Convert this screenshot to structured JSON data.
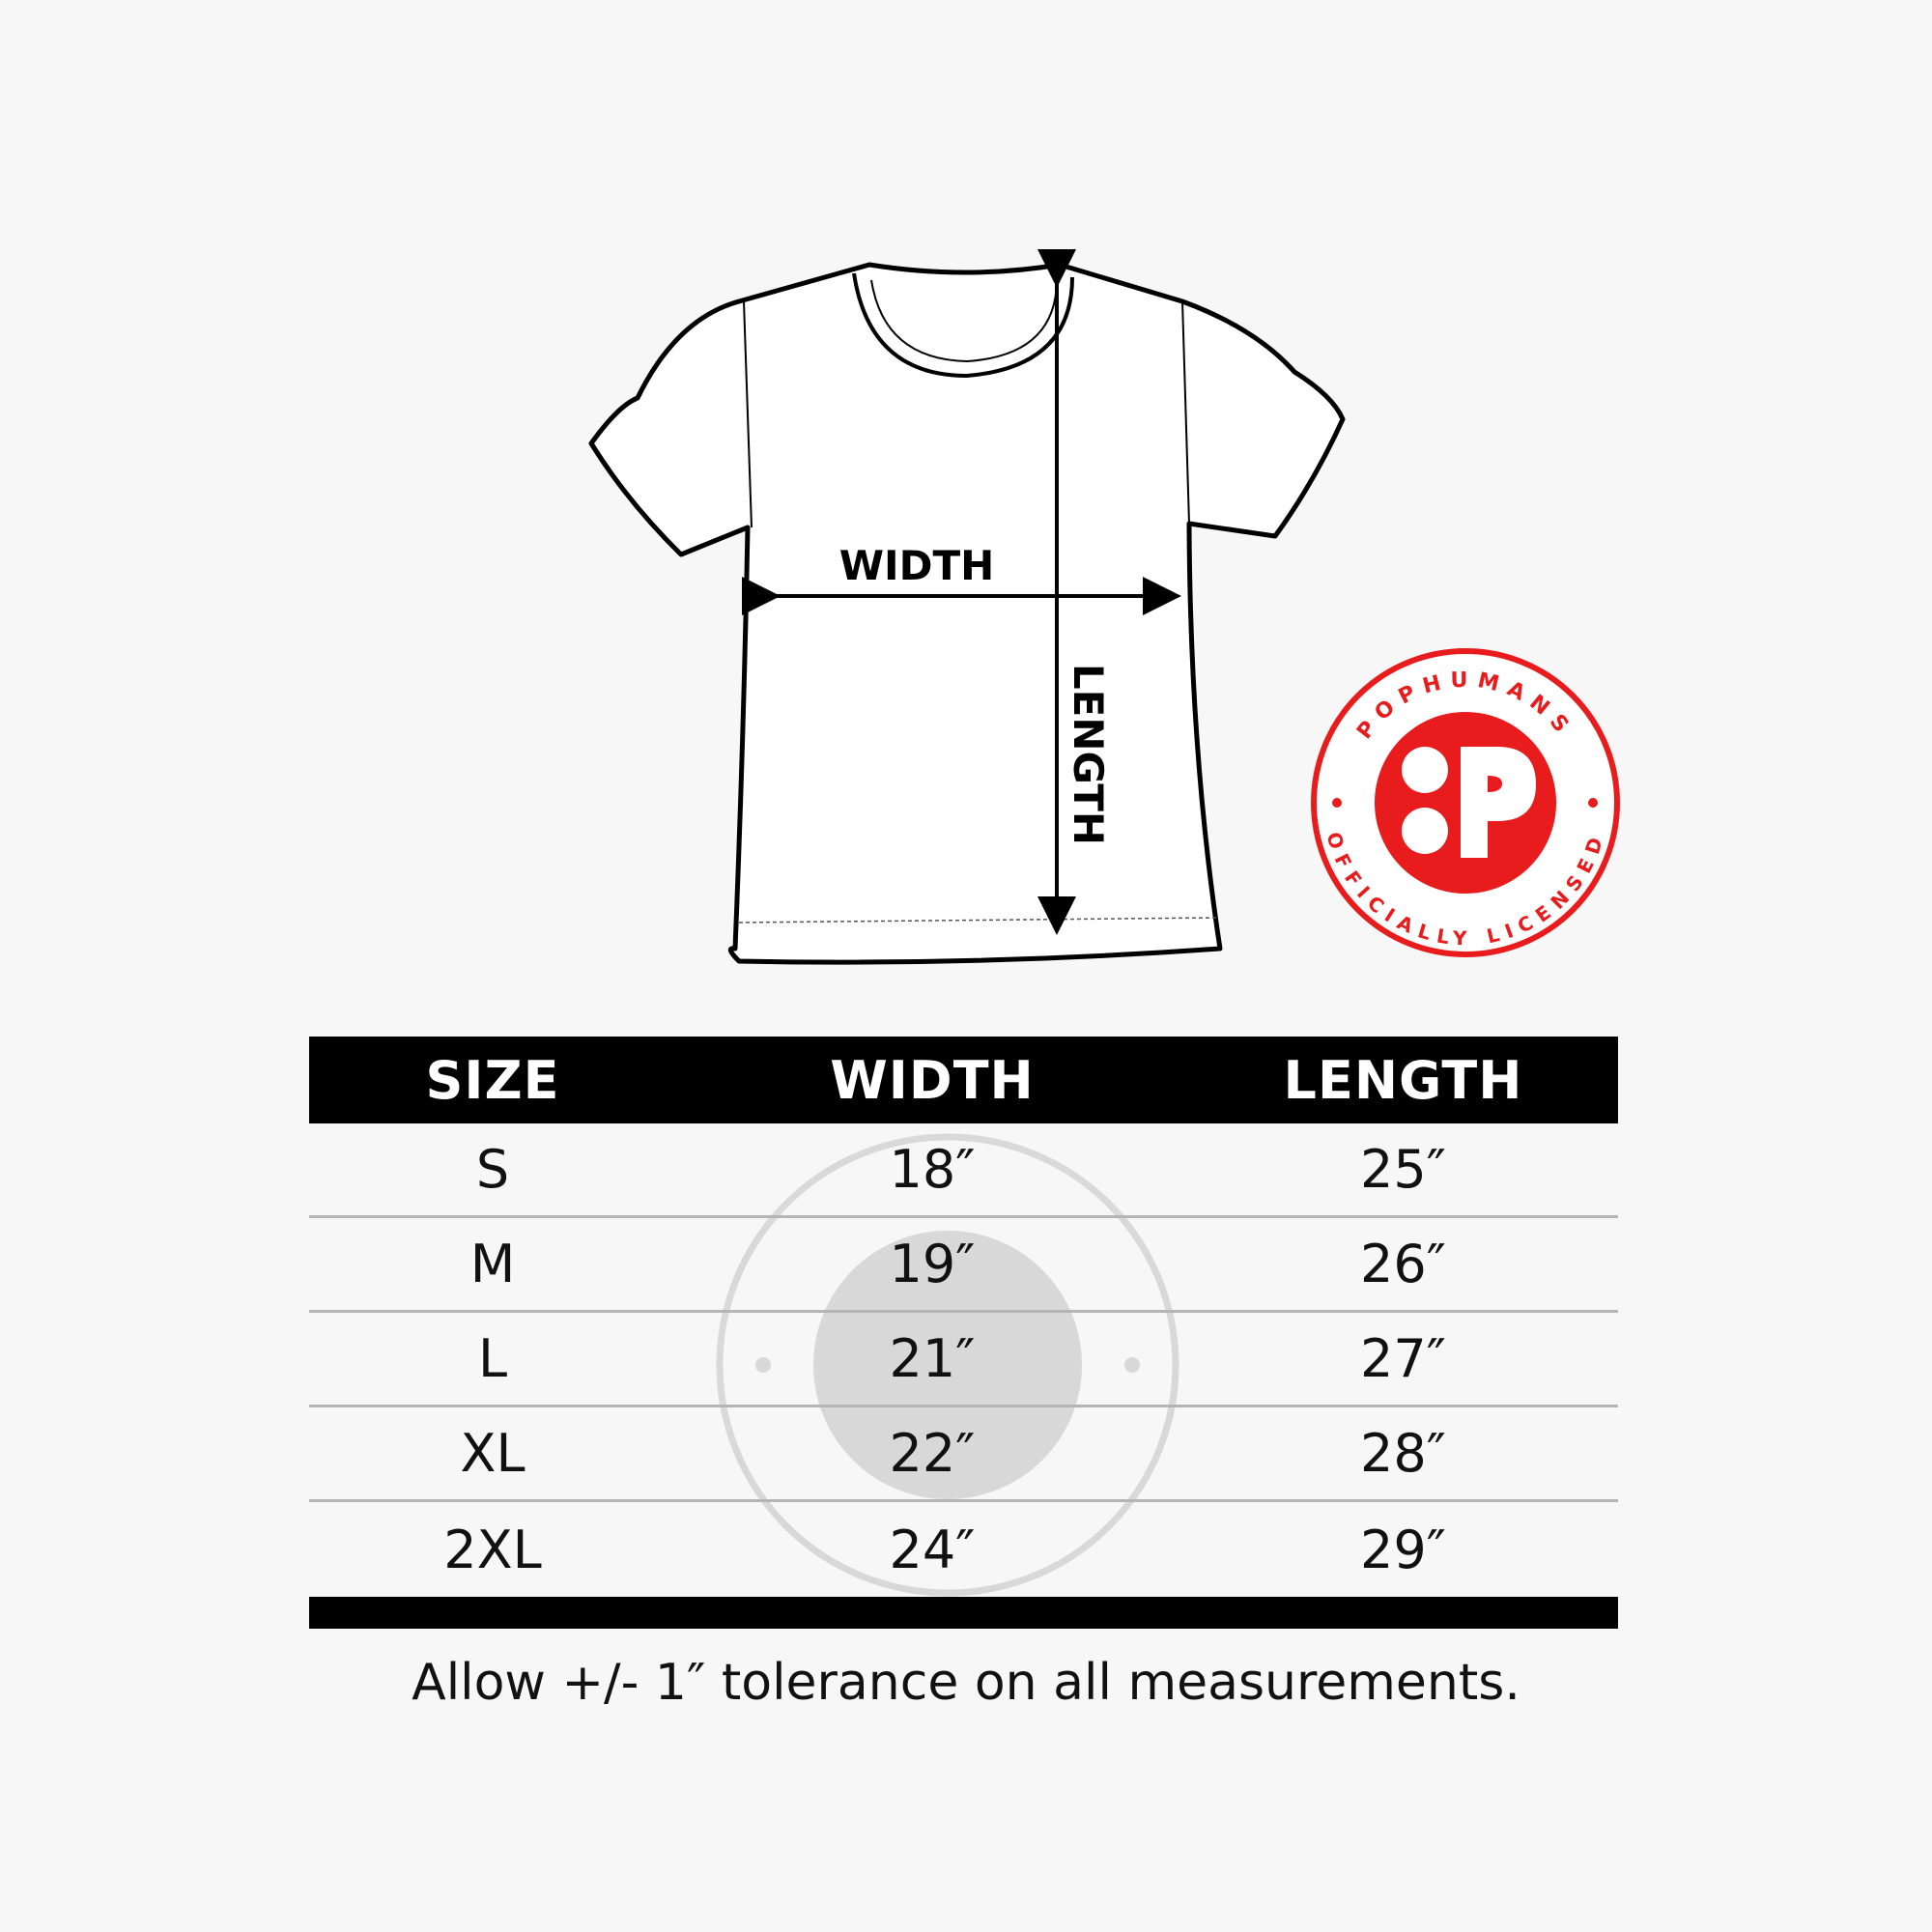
{
  "diagram": {
    "width_label": "WIDTH",
    "length_label": "LENGTH"
  },
  "badge": {
    "brand": "POPHUMANS",
    "tagline": "OFFICIALLY LICENSED",
    "color": "#e81c1c"
  },
  "table": {
    "headers": [
      "SIZE",
      "WIDTH",
      "LENGTH"
    ],
    "rows": [
      {
        "size": "S",
        "width": "18″",
        "length": "25″"
      },
      {
        "size": "M",
        "width": "19″",
        "length": "26″"
      },
      {
        "size": "L",
        "width": "21″",
        "length": "27″"
      },
      {
        "size": "XL",
        "width": "22″",
        "length": "28″"
      },
      {
        "size": "2XL",
        "width": "24″",
        "length": "29″"
      }
    ]
  },
  "footer": "Allow +/- 1″ tolerance on all measurements."
}
